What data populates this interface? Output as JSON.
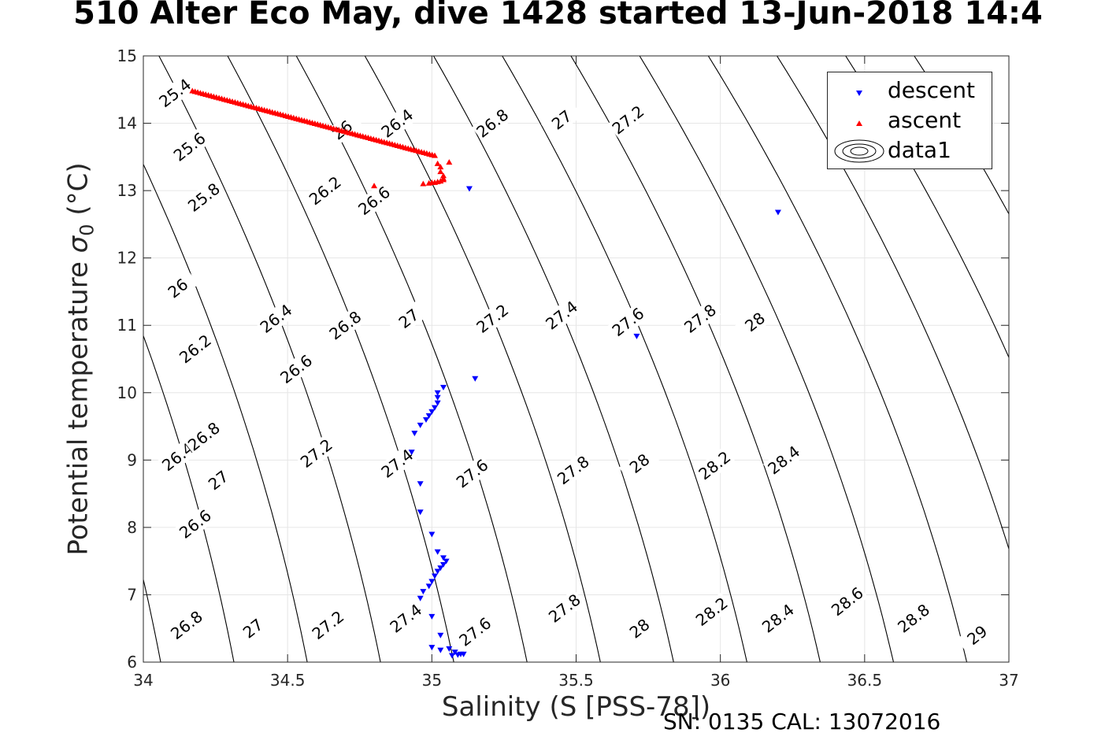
{
  "title": "510 Alter Eco May, dive 1428 started 13-Jun-2018 14:4",
  "footer": "SN: 0135  CAL: 13072016",
  "chart_data": {
    "type": "scatter",
    "xlabel": "Salinity (S [PSS-78])",
    "ylabel_main": "Potential temperature ",
    "ylabel_sigma": "σ",
    "ylabel_sub": "0",
    "ylabel_unit": " (°C)",
    "xlim": [
      34,
      37
    ],
    "ylim": [
      6,
      15
    ],
    "xticks": [
      "34",
      "34.5",
      "35",
      "35.5",
      "36",
      "36.5",
      "37"
    ],
    "yticks": [
      "6",
      "7",
      "8",
      "9",
      "10",
      "11",
      "12",
      "13",
      "14",
      "15"
    ],
    "grid": true,
    "legend_position": "top-right",
    "colors": {
      "descent": "#0000ff",
      "ascent": "#ff0000",
      "contour": "#000000",
      "grid": "#e6e6e6"
    },
    "contour_levels": [
      25.4,
      25.6,
      25.8,
      26,
      26.2,
      26.4,
      26.6,
      26.8,
      27,
      27.2,
      27.4,
      27.6,
      27.8,
      28,
      28.2,
      28.4,
      28.6,
      28.8,
      29
    ],
    "contour_labels": [
      {
        "text": "25.4",
        "s": 34.11,
        "t": 14.45
      },
      {
        "text": "25.6",
        "s": 34.16,
        "t": 13.65
      },
      {
        "text": "25.8",
        "s": 34.21,
        "t": 12.9
      },
      {
        "text": "26",
        "s": 34.12,
        "t": 11.55
      },
      {
        "text": "26.2",
        "s": 34.18,
        "t": 10.65
      },
      {
        "text": "26.4",
        "s": 34.12,
        "t": 9.05
      },
      {
        "text": "26.6",
        "s": 34.18,
        "t": 8.05
      },
      {
        "text": "26.8",
        "s": 34.15,
        "t": 6.55
      },
      {
        "text": "27",
        "s": 34.38,
        "t": 6.5
      },
      {
        "text": "27.2",
        "s": 34.64,
        "t": 6.55
      },
      {
        "text": "27.4",
        "s": 34.91,
        "t": 6.65
      },
      {
        "text": "27.6",
        "s": 35.15,
        "t": 6.45
      },
      {
        "text": "27.8",
        "s": 35.46,
        "t": 6.8
      },
      {
        "text": "28",
        "s": 35.72,
        "t": 6.5
      },
      {
        "text": "28.2",
        "s": 35.97,
        "t": 6.75
      },
      {
        "text": "28.4",
        "s": 36.2,
        "t": 6.65
      },
      {
        "text": "28.6",
        "s": 36.44,
        "t": 6.9
      },
      {
        "text": "28.8",
        "s": 36.67,
        "t": 6.65
      },
      {
        "text": "29",
        "s": 36.89,
        "t": 6.4
      },
      {
        "text": "26.8",
        "s": 34.21,
        "t": 9.35
      },
      {
        "text": "27",
        "s": 34.26,
        "t": 8.7
      },
      {
        "text": "27.2",
        "s": 34.6,
        "t": 9.1
      },
      {
        "text": "27.4",
        "s": 34.88,
        "t": 8.95
      },
      {
        "text": "27.6",
        "s": 35.14,
        "t": 8.8
      },
      {
        "text": "27.8",
        "s": 35.49,
        "t": 8.85
      },
      {
        "text": "28",
        "s": 35.72,
        "t": 8.95
      },
      {
        "text": "28.2",
        "s": 35.98,
        "t": 8.92
      },
      {
        "text": "28.4",
        "s": 36.22,
        "t": 9.0
      },
      {
        "text": "26.4",
        "s": 34.46,
        "t": 11.1
      },
      {
        "text": "26.6",
        "s": 34.53,
        "t": 10.35
      },
      {
        "text": "26.8",
        "s": 34.7,
        "t": 11.0
      },
      {
        "text": "27",
        "s": 34.92,
        "t": 11.1
      },
      {
        "text": "27.2",
        "s": 35.21,
        "t": 11.1
      },
      {
        "text": "27.4",
        "s": 35.45,
        "t": 11.15
      },
      {
        "text": "27.6",
        "s": 35.68,
        "t": 11.05
      },
      {
        "text": "27.8",
        "s": 35.93,
        "t": 11.1
      },
      {
        "text": "28",
        "s": 36.12,
        "t": 11.05
      },
      {
        "text": "26",
        "s": 34.69,
        "t": 13.9
      },
      {
        "text": "26.2",
        "s": 34.63,
        "t": 13.0
      },
      {
        "text": "26.4",
        "s": 34.88,
        "t": 14.0
      },
      {
        "text": "26.6",
        "s": 34.8,
        "t": 12.85
      },
      {
        "text": "26.8",
        "s": 35.21,
        "t": 14.0
      },
      {
        "text": "27",
        "s": 35.45,
        "t": 14.05
      },
      {
        "text": "27.2",
        "s": 35.68,
        "t": 14.05
      }
    ],
    "series": [
      {
        "name": "descent",
        "marker": "triangle-down",
        "points": [
          [
            35.13,
            13.03
          ],
          [
            36.2,
            12.68
          ],
          [
            35.71,
            10.84
          ],
          [
            35.15,
            10.21
          ],
          [
            35.04,
            10.08
          ],
          [
            35.02,
            10.0
          ],
          [
            35.02,
            9.93
          ],
          [
            35.02,
            9.85
          ],
          [
            35.01,
            9.78
          ],
          [
            35.0,
            9.72
          ],
          [
            34.99,
            9.66
          ],
          [
            34.98,
            9.6
          ],
          [
            34.96,
            9.52
          ],
          [
            34.94,
            9.4
          ],
          [
            34.93,
            9.12
          ],
          [
            34.96,
            8.65
          ],
          [
            34.96,
            8.23
          ],
          [
            35.0,
            7.9
          ],
          [
            35.02,
            7.64
          ],
          [
            35.04,
            7.55
          ],
          [
            35.05,
            7.5
          ],
          [
            35.04,
            7.45
          ],
          [
            35.03,
            7.4
          ],
          [
            35.02,
            7.35
          ],
          [
            35.01,
            7.28
          ],
          [
            35.0,
            7.2
          ],
          [
            34.99,
            7.13
          ],
          [
            34.97,
            7.05
          ],
          [
            34.96,
            6.95
          ],
          [
            35.0,
            6.68
          ],
          [
            35.03,
            6.4
          ],
          [
            35.0,
            6.22
          ],
          [
            35.03,
            6.18
          ],
          [
            35.06,
            6.2
          ],
          [
            35.08,
            6.15
          ],
          [
            35.1,
            6.12
          ],
          [
            35.07,
            6.1
          ],
          [
            35.09,
            6.11
          ],
          [
            35.11,
            6.12
          ]
        ]
      },
      {
        "name": "ascent",
        "marker": "triangle-up",
        "line": {
          "s0": 34.17,
          "t0": 14.48,
          "s1": 35.01,
          "t1": 13.52,
          "n": 92
        },
        "points": [
          [
            35.02,
            13.4
          ],
          [
            35.03,
            13.35
          ],
          [
            35.06,
            13.42
          ],
          [
            35.03,
            13.28
          ],
          [
            35.04,
            13.22
          ],
          [
            35.04,
            13.18
          ],
          [
            35.03,
            13.14
          ],
          [
            35.01,
            13.12
          ],
          [
            34.99,
            13.11
          ],
          [
            34.97,
            13.1
          ],
          [
            35.0,
            13.12
          ],
          [
            35.02,
            13.13
          ],
          [
            35.04,
            13.16
          ],
          [
            34.8,
            13.07
          ]
        ]
      },
      {
        "name": "data1",
        "marker": "contour"
      }
    ]
  }
}
